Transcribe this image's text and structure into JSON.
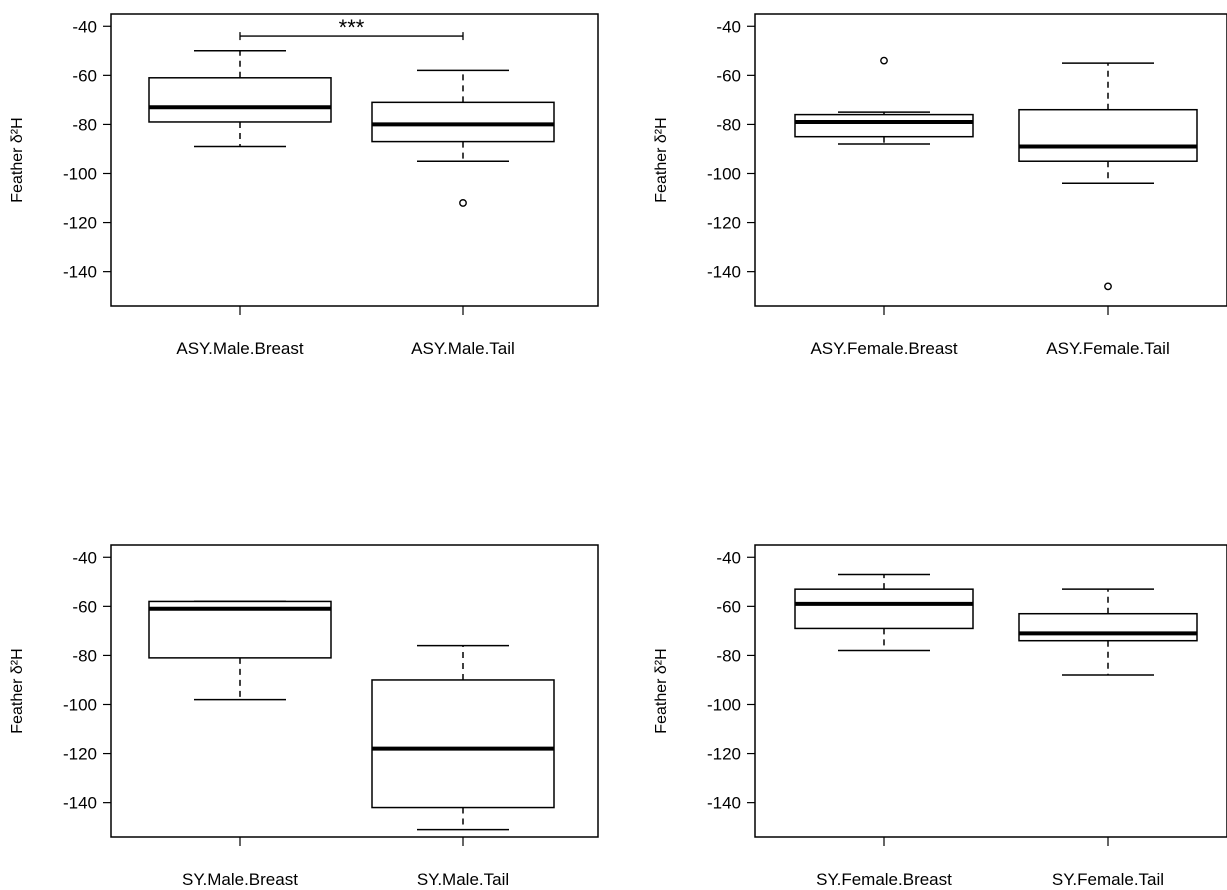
{
  "chart_data": [
    {
      "type": "box",
      "ylabel": "Feather δ²H",
      "ylim": [
        -154,
        -35
      ],
      "yticks": [
        -40,
        -60,
        -80,
        -100,
        -120,
        -140
      ],
      "categories": [
        "ASY.Male.Breast",
        "ASY.Male.Tail"
      ],
      "boxes": [
        {
          "whisker_high": -50,
          "q3": -61,
          "median": -73,
          "q1": -79,
          "whisker_low": -89,
          "outliers": []
        },
        {
          "whisker_high": -58,
          "q3": -71,
          "median": -80,
          "q1": -87,
          "whisker_low": -95,
          "outliers": [
            -112
          ]
        }
      ],
      "significance": {
        "label": "***",
        "y": -44
      }
    },
    {
      "type": "box",
      "ylabel": "Feather δ²H",
      "ylim": [
        -154,
        -35
      ],
      "yticks": [
        -40,
        -60,
        -80,
        -100,
        -120,
        -140
      ],
      "categories": [
        "ASY.Female.Breast",
        "ASY.Female.Tail"
      ],
      "boxes": [
        {
          "whisker_high": -75,
          "q3": -76,
          "median": -79,
          "q1": -85,
          "whisker_low": -88,
          "outliers": [
            -54
          ]
        },
        {
          "whisker_high": -55,
          "q3": -74,
          "median": -89,
          "q1": -95,
          "whisker_low": -104,
          "outliers": [
            -146
          ]
        }
      ]
    },
    {
      "type": "box",
      "ylabel": "Feather δ²H",
      "ylim": [
        -154,
        -35
      ],
      "yticks": [
        -40,
        -60,
        -80,
        -100,
        -120,
        -140
      ],
      "categories": [
        "SY.Male.Breast",
        "SY.Male.Tail"
      ],
      "boxes": [
        {
          "whisker_high": -58,
          "q3": -58,
          "median": -61,
          "q1": -81,
          "whisker_low": -98,
          "outliers": []
        },
        {
          "whisker_high": -76,
          "q3": -90,
          "median": -118,
          "q1": -142,
          "whisker_low": -151,
          "outliers": []
        }
      ]
    },
    {
      "type": "box",
      "ylabel": "Feather δ²H",
      "ylim": [
        -154,
        -35
      ],
      "yticks": [
        -40,
        -60,
        -80,
        -100,
        -120,
        -140
      ],
      "categories": [
        "SY.Female.Breast",
        "SY.Female.Tail"
      ],
      "boxes": [
        {
          "whisker_high": -47,
          "q3": -53,
          "median": -59,
          "q1": -69,
          "whisker_low": -78,
          "outliers": []
        },
        {
          "whisker_high": -53,
          "q3": -63,
          "median": -71,
          "q1": -74,
          "whisker_low": -88,
          "outliers": []
        }
      ]
    }
  ]
}
